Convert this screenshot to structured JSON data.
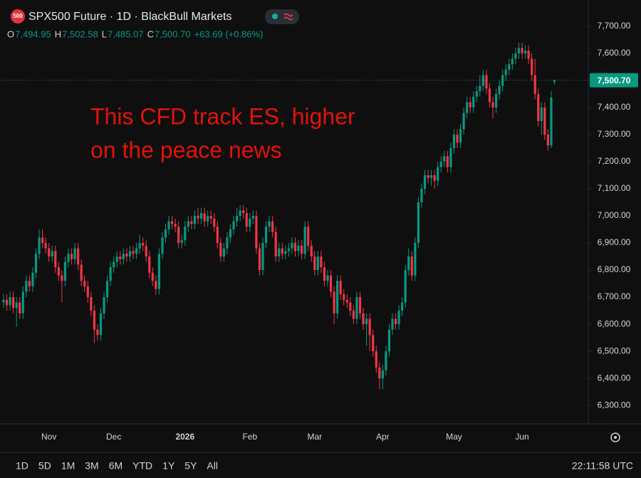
{
  "header": {
    "badge": "500",
    "title": "SPX500 Future · 1D · BlackBull Markets",
    "ohlc": [
      {
        "label": "O",
        "value": "7,494.95"
      },
      {
        "label": "H",
        "value": "7,502.58"
      },
      {
        "label": "L",
        "value": "7,485.07"
      },
      {
        "label": "C",
        "value": "7,500.70"
      }
    ],
    "change": "+63.69 (+0.86%)"
  },
  "toolbar": {
    "ranges": [
      "1D",
      "5D",
      "1M",
      "3M",
      "6M",
      "YTD",
      "1Y",
      "5Y",
      "All"
    ],
    "clock": "22:11:58 UTC"
  },
  "chart_data": {
    "type": "candlestick",
    "annotation": [
      "This CFD track ES, higher",
      "on the peace news"
    ],
    "up_color": "#089981",
    "down_color": "#f23645",
    "annotation_color": "#e3120b",
    "grid": false,
    "ylim": [
      6232,
      7797
    ],
    "yticks": [
      {
        "value": 6300,
        "label": "6,300.00"
      },
      {
        "value": 6400,
        "label": "6,400.00"
      },
      {
        "value": 6500,
        "label": "6,500.00"
      },
      {
        "value": 6600,
        "label": "6,600.00"
      },
      {
        "value": 6700,
        "label": "6,700.00"
      },
      {
        "value": 6800,
        "label": "6,800.00"
      },
      {
        "value": 6900,
        "label": "6,900.00"
      },
      {
        "value": 7000,
        "label": "7,000.00"
      },
      {
        "value": 7100,
        "label": "7,100.00"
      },
      {
        "value": 7200,
        "label": "7,200.00"
      },
      {
        "value": 7300,
        "label": "7,300.00"
      },
      {
        "value": 7400,
        "label": "7,400.00"
      },
      {
        "value": 7500,
        "label": "7,500.00"
      },
      {
        "value": 7600,
        "label": "7,600.00"
      },
      {
        "value": 7700,
        "label": "7,700.00"
      }
    ],
    "last_price": {
      "value": 7500.7,
      "label": "7,500.70"
    },
    "categories": [
      null,
      null,
      null,
      null,
      null,
      null,
      null,
      null,
      null,
      null,
      null,
      null,
      null,
      null,
      "Nov",
      null,
      null,
      null,
      null,
      null,
      null,
      null,
      null,
      null,
      null,
      null,
      null,
      null,
      null,
      null,
      null,
      null,
      null,
      null,
      "Dec",
      null,
      null,
      null,
      null,
      null,
      null,
      null,
      null,
      null,
      null,
      null,
      null,
      null,
      null,
      null,
      null,
      null,
      null,
      null,
      null,
      null,
      "2026",
      null,
      null,
      null,
      null,
      null,
      null,
      null,
      null,
      null,
      null,
      null,
      null,
      null,
      null,
      null,
      null,
      null,
      null,
      null,
      "Feb",
      null,
      null,
      null,
      null,
      null,
      null,
      null,
      null,
      null,
      null,
      null,
      null,
      null,
      null,
      null,
      null,
      null,
      null,
      null,
      "Mar",
      null,
      null,
      null,
      null,
      null,
      null,
      null,
      null,
      null,
      null,
      null,
      null,
      null,
      null,
      null,
      null,
      null,
      null,
      null,
      null,
      "Apr",
      null,
      null,
      null,
      null,
      null,
      null,
      null,
      null,
      null,
      null,
      null,
      null,
      null,
      null,
      null,
      null,
      null,
      null,
      null,
      null,
      null,
      "May",
      null,
      null,
      null,
      null,
      null,
      null,
      null,
      null,
      null,
      null,
      null,
      null,
      null,
      null,
      null,
      null,
      null,
      null,
      null,
      null,
      "Jun",
      null,
      null,
      null,
      null,
      null,
      null,
      null,
      null,
      null,
      null
    ],
    "open": [
      6680,
      6690,
      6670,
      6700,
      6660,
      6680,
      6640,
      6720,
      6760,
      6740,
      6790,
      6860,
      6920,
      6900,
      6880,
      6850,
      6870,
      6810,
      6780,
      6760,
      6830,
      6860,
      6840,
      6880,
      6820,
      6760,
      6740,
      6700,
      6650,
      6580,
      6560,
      6640,
      6700,
      6760,
      6810,
      6830,
      6850,
      6840,
      6860,
      6850,
      6870,
      6860,
      6880,
      6900,
      6890,
      6850,
      6790,
      6760,
      6730,
      6860,
      6920,
      6950,
      6980,
      6970,
      6960,
      6900,
      6910,
      6960,
      6980,
      6970,
      7000,
      6990,
      7010,
      6980,
      7000,
      6990,
      6960,
      6900,
      6850,
      6880,
      6920,
      6950,
      6980,
      7000,
      7020,
      7010,
      6960,
      6990,
      7000,
      6880,
      6800,
      6900,
      6960,
      6980,
      6940,
      6850,
      6880,
      6860,
      6870,
      6880,
      6900,
      6870,
      6890,
      6860,
      6960,
      6890,
      6850,
      6800,
      6850,
      6810,
      6760,
      6780,
      6720,
      6640,
      6760,
      6710,
      6690,
      6680,
      6650,
      6620,
      6700,
      6640,
      6600,
      6620,
      6560,
      6500,
      6440,
      6400,
      6430,
      6500,
      6580,
      6620,
      6600,
      6650,
      6680,
      6800,
      6850,
      6780,
      6900,
      7050,
      7100,
      7150,
      7140,
      7150,
      7130,
      7180,
      7200,
      7220,
      7180,
      7250,
      7300,
      7270,
      7320,
      7380,
      7420,
      7400,
      7440,
      7460,
      7480,
      7520,
      7470,
      7420,
      7400,
      7450,
      7480,
      7520,
      7540,
      7560,
      7580,
      7600,
      7620,
      7600,
      7610,
      7580,
      7520,
      7450,
      7350,
      7400,
      7300,
      7260,
      7494.95
    ],
    "high": [
      6710,
      6710,
      6720,
      6720,
      6700,
      6700,
      6740,
      6780,
      6780,
      6810,
      6880,
      6950,
      6950,
      6920,
      6900,
      6890,
      6890,
      6830,
      6800,
      6850,
      6880,
      6880,
      6900,
      6900,
      6840,
      6780,
      6760,
      6720,
      6670,
      6600,
      6660,
      6720,
      6780,
      6830,
      6850,
      6870,
      6870,
      6880,
      6880,
      6890,
      6890,
      6900,
      6930,
      6920,
      6910,
      6870,
      6810,
      6780,
      6880,
      6940,
      6970,
      7000,
      7000,
      6990,
      6980,
      6930,
      6980,
      7000,
      7000,
      7020,
      7030,
      7030,
      7030,
      7020,
      7020,
      7010,
      6980,
      6920,
      6900,
      6940,
      6970,
      7000,
      7030,
      7040,
      7040,
      7030,
      7010,
      7020,
      7020,
      6900,
      6920,
      6980,
      7000,
      7000,
      6960,
      6900,
      6900,
      6890,
      6900,
      6920,
      6920,
      6910,
      6910,
      6980,
      6980,
      6910,
      6870,
      6870,
      6870,
      6830,
      6800,
      6800,
      6740,
      6780,
      6780,
      6730,
      6710,
      6700,
      6670,
      6720,
      6720,
      6660,
      6640,
      6640,
      6580,
      6520,
      6460,
      6450,
      6520,
      6600,
      6640,
      6640,
      6670,
      6700,
      6820,
      6880,
      6870,
      6920,
      7070,
      7120,
      7170,
      7170,
      7170,
      7170,
      7200,
      7220,
      7240,
      7240,
      7270,
      7320,
      7320,
      7340,
      7400,
      7440,
      7440,
      7460,
      7480,
      7520,
      7540,
      7540,
      7490,
      7440,
      7470,
      7500,
      7540,
      7560,
      7580,
      7600,
      7620,
      7640,
      7640,
      7630,
      7630,
      7600,
      7580,
      7470,
      7420,
      7420,
      7320,
      7460,
      7502.58
    ],
    "low": [
      6660,
      6650,
      6650,
      6640,
      6590,
      6620,
      6620,
      6700,
      6720,
      6720,
      6770,
      6840,
      6880,
      6860,
      6830,
      6830,
      6790,
      6760,
      6680,
      6740,
      6810,
      6820,
      6820,
      6800,
      6740,
      6720,
      6680,
      6630,
      6530,
      6540,
      6540,
      6620,
      6680,
      6740,
      6790,
      6810,
      6820,
      6820,
      6830,
      6830,
      6840,
      6840,
      6860,
      6870,
      6830,
      6770,
      6740,
      6710,
      6710,
      6840,
      6900,
      6930,
      6950,
      6940,
      6880,
      6880,
      6890,
      6940,
      6950,
      6950,
      6970,
      6970,
      6960,
      6960,
      6970,
      6940,
      6880,
      6830,
      6830,
      6860,
      6900,
      6930,
      6960,
      6980,
      6990,
      6940,
      6940,
      6970,
      6860,
      6780,
      6780,
      6880,
      6940,
      6920,
      6830,
      6830,
      6840,
      6840,
      6850,
      6860,
      6850,
      6850,
      6840,
      6840,
      6870,
      6830,
      6780,
      6780,
      6790,
      6740,
      6740,
      6700,
      6600,
      6620,
      6690,
      6670,
      6660,
      6630,
      6600,
      6600,
      6620,
      6580,
      6520,
      6500,
      6480,
      6420,
      6360,
      6360,
      6410,
      6480,
      6560,
      6580,
      6580,
      6630,
      6660,
      6780,
      6760,
      6760,
      6880,
      7030,
      7080,
      7120,
      7110,
      7100,
      7110,
      7160,
      7180,
      7160,
      7160,
      7230,
      7250,
      7250,
      7300,
      7360,
      7380,
      7380,
      7420,
      7440,
      7460,
      7450,
      7400,
      7360,
      7380,
      7430,
      7460,
      7500,
      7520,
      7540,
      7560,
      7580,
      7580,
      7580,
      7560,
      7500,
      7430,
      7330,
      7300,
      7280,
      7240,
      7250,
      7485.07
    ],
    "close": [
      6690,
      6670,
      6700,
      6660,
      6680,
      6640,
      6720,
      6760,
      6740,
      6790,
      6860,
      6920,
      6900,
      6880,
      6850,
      6870,
      6810,
      6780,
      6760,
      6830,
      6860,
      6840,
      6880,
      6820,
      6760,
      6740,
      6700,
      6650,
      6580,
      6560,
      6640,
      6700,
      6760,
      6810,
      6830,
      6850,
      6840,
      6860,
      6850,
      6870,
      6860,
      6880,
      6900,
      6890,
      6850,
      6790,
      6760,
      6730,
      6860,
      6920,
      6950,
      6980,
      6970,
      6960,
      6900,
      6910,
      6960,
      6980,
      6970,
      7000,
      6990,
      7010,
      6980,
      7000,
      6990,
      6960,
      6900,
      6850,
      6880,
      6920,
      6950,
      6980,
      7000,
      7020,
      7010,
      6960,
      6990,
      7000,
      6880,
      6800,
      6900,
      6960,
      6980,
      6940,
      6850,
      6880,
      6860,
      6870,
      6880,
      6900,
      6870,
      6890,
      6860,
      6960,
      6890,
      6850,
      6800,
      6850,
      6810,
      6760,
      6780,
      6720,
      6640,
      6760,
      6710,
      6690,
      6680,
      6650,
      6620,
      6700,
      6640,
      6600,
      6620,
      6560,
      6500,
      6440,
      6400,
      6430,
      6500,
      6580,
      6620,
      6600,
      6650,
      6680,
      6800,
      6850,
      6780,
      6900,
      7050,
      7100,
      7150,
      7140,
      7150,
      7130,
      7180,
      7200,
      7220,
      7180,
      7250,
      7300,
      7270,
      7320,
      7380,
      7420,
      7400,
      7440,
      7460,
      7480,
      7520,
      7470,
      7420,
      7400,
      7450,
      7480,
      7520,
      7540,
      7560,
      7580,
      7600,
      7620,
      7600,
      7610,
      7580,
      7520,
      7450,
      7350,
      7400,
      7300,
      7260,
      7437.01,
      7500.7
    ]
  }
}
